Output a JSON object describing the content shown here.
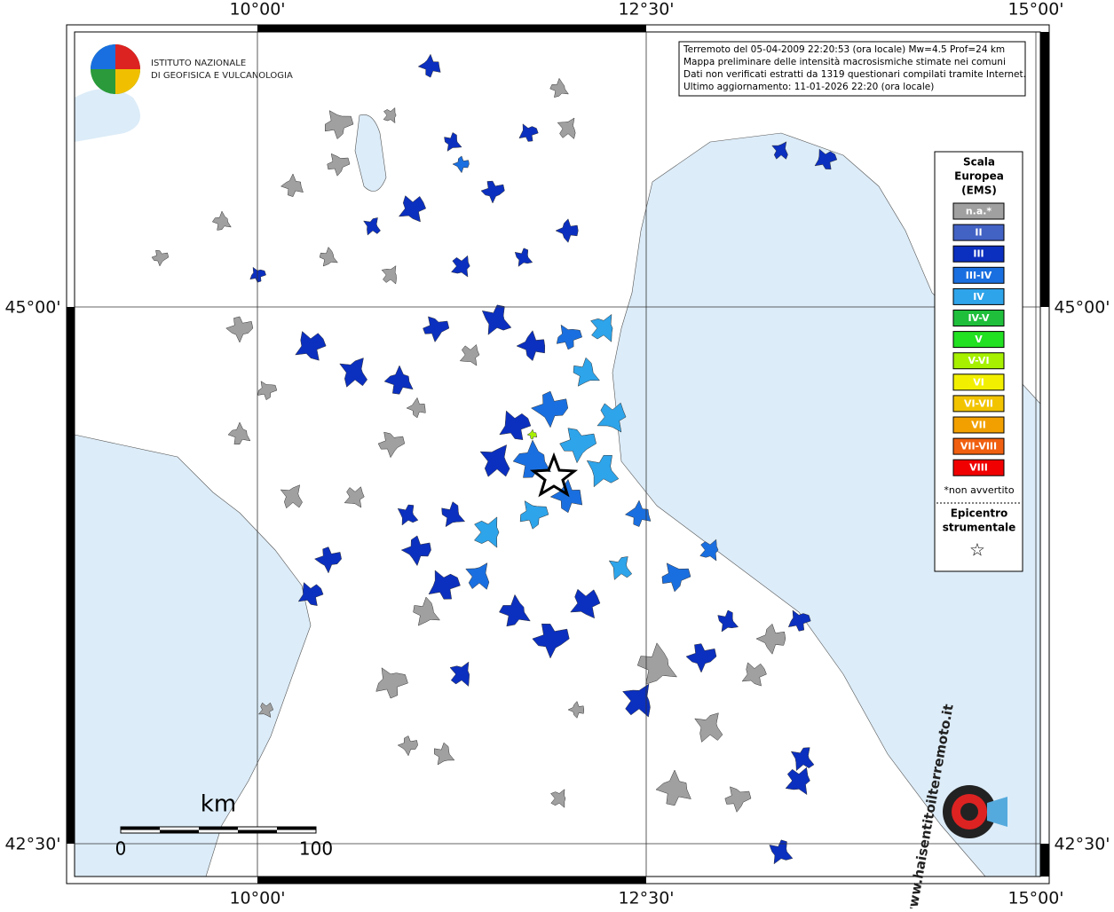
{
  "header": {
    "institute_line1": "ISTITUTO NAZIONALE",
    "institute_line2": "DI GEOFISICA E VULCANOLOGIA"
  },
  "info": [
    "Terremoto del 05-04-2009 22:20:53 (ora locale) Mw=4.5 Prof=24 km",
    "Mappa preliminare delle intensità macrosismiche stimate nei comuni",
    "Dati non verificati estratti da 1319 questionari compilati tramite Internet.",
    "Ultimo aggiornamento: 11-01-2026 22:20 (ora locale)"
  ],
  "axes": {
    "lon_labels": [
      "10°00'",
      "12°30'",
      "15°00'"
    ],
    "lat_labels": [
      "45°00'",
      "42°30'"
    ]
  },
  "legend": {
    "title": [
      "Scala",
      "Europea",
      "(EMS)"
    ],
    "items": [
      {
        "label": "n.a.*",
        "color": "#a0a0a0"
      },
      {
        "label": "II",
        "color": "#4262c4"
      },
      {
        "label": "III",
        "color": "#0b2fbf"
      },
      {
        "label": "III-IV",
        "color": "#1a6fe0"
      },
      {
        "label": "IV",
        "color": "#2ea4ea"
      },
      {
        "label": "IV-V",
        "color": "#1fbf3c"
      },
      {
        "label": "V",
        "color": "#22e022"
      },
      {
        "label": "V-VI",
        "color": "#a6f000"
      },
      {
        "label": "VI",
        "color": "#f2f000"
      },
      {
        "label": "VI-VII",
        "color": "#f2c400"
      },
      {
        "label": "VII",
        "color": "#f2a000"
      },
      {
        "label": "VII-VIII",
        "color": "#f06010"
      },
      {
        "label": "VIII",
        "color": "#f00000"
      }
    ],
    "note": "*non avvertito",
    "epicentre": [
      "Epicentro",
      "strumentale"
    ],
    "epicentre_symbol": "☆"
  },
  "scale_bar": {
    "unit": "km",
    "start": "0",
    "end": "100"
  },
  "site": "www.haisentitoilterremoto.it"
}
